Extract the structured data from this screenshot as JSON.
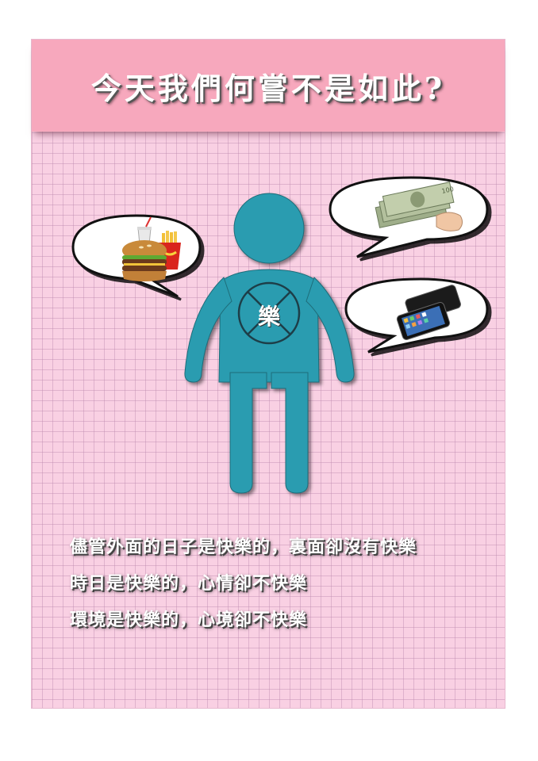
{
  "banner": {
    "title": "今天我們何嘗不是如此?"
  },
  "figure": {
    "chest_char": "樂",
    "body_color": "#2a9cb0"
  },
  "bubbles": [
    {
      "name": "fast-food",
      "icon": "burger-fries-drink-icon"
    },
    {
      "name": "money",
      "icon": "cash-in-hand-icon"
    },
    {
      "name": "smartphone",
      "icon": "smartphone-icon"
    }
  ],
  "caption": {
    "lines": [
      "儘管外面的日子是快樂的，裏面卻沒有快樂",
      "時日是快樂的，心情卻不快樂",
      "環境是快樂的，心境卻不快樂"
    ]
  },
  "colors": {
    "background": "#f9d0e3",
    "banner": "#f7a8bd"
  }
}
